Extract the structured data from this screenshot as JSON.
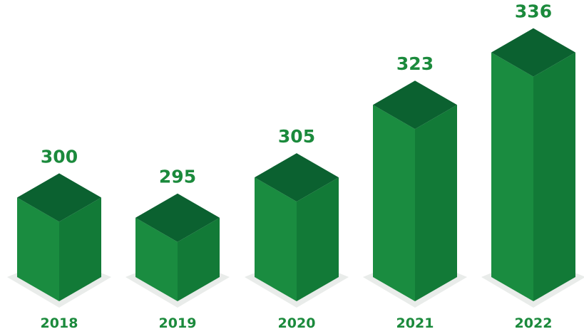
{
  "chart_data": {
    "type": "bar",
    "title": "",
    "xlabel": "",
    "ylabel": "",
    "categories": [
      "2018",
      "2019",
      "2020",
      "2021",
      "2022"
    ],
    "values": [
      300,
      295,
      305,
      323,
      336
    ],
    "value_labels": [
      "300",
      "295",
      "305",
      "323",
      "336"
    ],
    "grid": false,
    "legend": "none",
    "style": "3d-isometric-columns"
  },
  "colors": {
    "top": "#0b6130",
    "left": "#1a8c40",
    "right": "#127a37",
    "label": "#1b8a3c",
    "shadow": "#e9ecea"
  }
}
